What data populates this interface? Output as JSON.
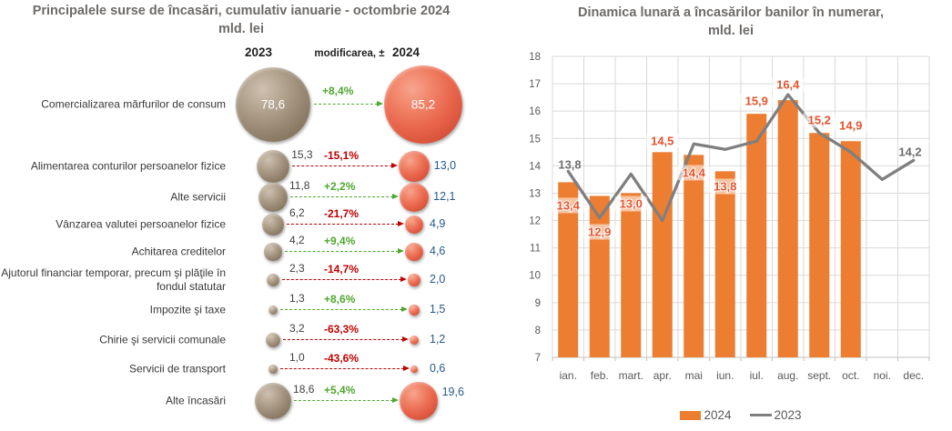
{
  "colors": {
    "bar_2024": "#ED7D31",
    "line_2023": "#7F7F7F",
    "bar_label": "#E2542F",
    "line_label": "#6F6F6F",
    "bubble_2023": "#9A8A76",
    "bubble_2024": "#E8644A",
    "positive_change": "#4EA72E",
    "negative_change": "#C00000",
    "value_2024_text": "#27598A",
    "value_2023_text": "#404040",
    "grid": "#D9D9D9",
    "axis": "#BFBFBF",
    "title_text": "#6E6A68"
  },
  "chart_data": [
    {
      "type": "bubble-comparison",
      "title": "Principalele surse de încasări, cumulativ ianuarie - octombrie 2024",
      "subtitle": "mld. lei",
      "columns": {
        "year_left": "2023",
        "change": "modificarea, ±",
        "year_right": "2024"
      },
      "rows": [
        {
          "label": "Comercializarea mărfurilor de consum",
          "y2023": 78.6,
          "v2023_label": "78,6",
          "change_pct": "+8,4%",
          "trend": "up",
          "y2024": 85.2,
          "v2024_label": "85,2"
        },
        {
          "label": "Alimentarea conturilor persoanelor fizice",
          "y2023": 15.3,
          "v2023_label": "15,3",
          "change_pct": "-15,1%",
          "trend": "down",
          "y2024": 13.0,
          "v2024_label": "13,0"
        },
        {
          "label": "Alte servicii",
          "y2023": 11.8,
          "v2023_label": "11,8",
          "change_pct": "+2,2%",
          "trend": "up",
          "y2024": 12.1,
          "v2024_label": "12,1"
        },
        {
          "label": "Vânzarea valutei persoanelor fizice",
          "y2023": 6.2,
          "v2023_label": "6,2",
          "change_pct": "-21,7%",
          "trend": "down",
          "y2024": 4.9,
          "v2024_label": "4,9"
        },
        {
          "label": "Achitarea creditelor",
          "y2023": 4.2,
          "v2023_label": "4,2",
          "change_pct": "+9,4%",
          "trend": "up",
          "y2024": 4.6,
          "v2024_label": "4,6"
        },
        {
          "label": "Ajutorul financiar temporar, precum şi plăţile în fondul statutar",
          "y2023": 2.3,
          "v2023_label": "2,3",
          "change_pct": "-14,7%",
          "trend": "down",
          "y2024": 2.0,
          "v2024_label": "2,0"
        },
        {
          "label": "Impozite şi taxe",
          "y2023": 1.3,
          "v2023_label": "1,3",
          "change_pct": "+8,6%",
          "trend": "up",
          "y2024": 1.5,
          "v2024_label": "1,5"
        },
        {
          "label": "Chirie şi servicii comunale",
          "y2023": 3.2,
          "v2023_label": "3,2",
          "change_pct": "-63,3%",
          "trend": "down",
          "y2024": 1.2,
          "v2024_label": "1,2"
        },
        {
          "label": "Servicii de transport",
          "y2023": 1.0,
          "v2023_label": "1,0",
          "change_pct": "-43,6%",
          "trend": "down",
          "y2024": 0.6,
          "v2024_label": "0,6"
        },
        {
          "label": "Alte încasări",
          "y2023": 18.6,
          "v2023_label": "18,6",
          "change_pct": "+5,4%",
          "trend": "up",
          "y2024": 19.6,
          "v2024_label": "19,6"
        }
      ]
    },
    {
      "type": "bar+line",
      "title": "Dinamica lunară a încasărilor banilor în numerar,",
      "subtitle": "mld. lei",
      "categories": [
        "ian.",
        "feb.",
        "mart.",
        "apr.",
        "mai",
        "iun.",
        "iul.",
        "aug.",
        "sept.",
        "oct.",
        "noi.",
        "dec."
      ],
      "series": [
        {
          "name": "2024",
          "kind": "bar",
          "values": [
            13.4,
            12.9,
            13.0,
            14.5,
            14.4,
            13.8,
            15.9,
            16.4,
            15.2,
            14.9,
            null,
            null
          ],
          "labels": [
            "13,4",
            "12,9",
            "13,0",
            "14,5",
            "14,4",
            "13,8",
            "15,9",
            "16,4",
            "15,2",
            "14,9"
          ]
        },
        {
          "name": "2023",
          "kind": "line",
          "values": [
            13.8,
            12.1,
            13.7,
            12.0,
            14.8,
            14.6,
            14.9,
            16.6,
            15.2,
            14.5,
            13.5,
            14.2
          ],
          "point_labels": [
            {
              "index": 0,
              "text": "13,8"
            },
            {
              "index": 11,
              "text": "14,2"
            }
          ]
        }
      ],
      "ylim": [
        7,
        18
      ],
      "ytick_step": 1,
      "grid": true,
      "legend_position": "bottom"
    }
  ]
}
